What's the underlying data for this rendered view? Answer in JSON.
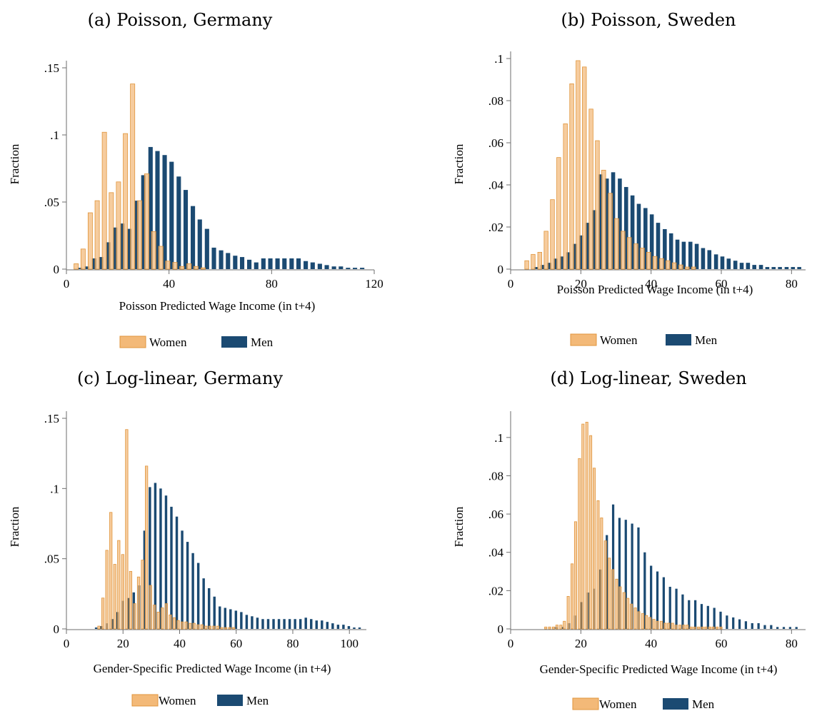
{
  "colors": {
    "women_fill": "#f3b978",
    "women_edge": "#e0953c",
    "men_fill": "#1b4a72",
    "axis": "#6e6e6e"
  },
  "legend": {
    "women": "Women",
    "men": "Men"
  },
  "chart_data": [
    {
      "type": "bar",
      "title": "(a) Poisson, Germany",
      "xlabel": "Poisson Predicted Wage Income (in t+4)",
      "ylabel": "Fraction",
      "xlim": [
        0,
        120
      ],
      "ylim": [
        0,
        0.15
      ],
      "xticks": [
        0,
        40,
        80,
        120
      ],
      "xtick_labels": [
        "0",
        "40",
        "80",
        "120"
      ],
      "yticks": [
        0,
        0.05,
        0.1,
        0.15
      ],
      "ytick_labels": [
        "0",
        ".05",
        ".1",
        ".15"
      ],
      "bin_width": 2.75,
      "series": [
        {
          "name": "Women",
          "x": [
            3.8,
            6.5,
            9.3,
            12.0,
            14.8,
            17.5,
            20.3,
            23.0,
            25.8,
            28.5,
            31.3,
            34.0,
            36.8,
            39.5,
            42.3,
            45.0,
            47.8,
            50.5,
            53.3
          ],
          "values": [
            0.004,
            0.015,
            0.042,
            0.051,
            0.102,
            0.057,
            0.065,
            0.101,
            0.138,
            0.051,
            0.071,
            0.028,
            0.017,
            0.006,
            0.005,
            0.002,
            0.004,
            0.002,
            0.001
          ]
        },
        {
          "name": "Men",
          "x": [
            5.3,
            8.0,
            10.8,
            13.5,
            16.3,
            19.0,
            21.8,
            24.5,
            27.3,
            30.0,
            32.8,
            35.5,
            38.3,
            41.0,
            43.8,
            46.5,
            49.3,
            52.0,
            54.8,
            57.5,
            60.3,
            63.0,
            65.8,
            68.5,
            71.3,
            74.0,
            76.8,
            79.5,
            82.3,
            85.0,
            87.8,
            90.5,
            93.3,
            96.0,
            98.8,
            101.5,
            104.3,
            107.0,
            109.8,
            112.5,
            115.3
          ],
          "values": [
            0.001,
            0.002,
            0.008,
            0.009,
            0.02,
            0.031,
            0.034,
            0.03,
            0.051,
            0.07,
            0.091,
            0.088,
            0.085,
            0.08,
            0.069,
            0.059,
            0.047,
            0.037,
            0.03,
            0.016,
            0.014,
            0.012,
            0.01,
            0.009,
            0.007,
            0.005,
            0.008,
            0.008,
            0.008,
            0.008,
            0.008,
            0.008,
            0.006,
            0.005,
            0.004,
            0.003,
            0.002,
            0.002,
            0.001,
            0.001,
            0.001
          ]
        }
      ]
    },
    {
      "type": "bar",
      "title": "(b) Poisson, Sweden",
      "xlabel": "Poisson Predicted Wage Income (in t+4)",
      "ylabel": "Fraction",
      "xlim": [
        0,
        84
      ],
      "ylim": [
        0,
        0.1
      ],
      "xticks": [
        0,
        20,
        40,
        60,
        80
      ],
      "xtick_labels": [
        "0",
        "20",
        "40",
        "60",
        "80"
      ],
      "yticks": [
        0,
        0.02,
        0.04,
        0.06,
        0.08,
        0.1
      ],
      "ytick_labels": [
        "0",
        ".02",
        ".04",
        ".06",
        ".08",
        ".1"
      ],
      "bin_width": 1.83,
      "series": [
        {
          "name": "Women",
          "x": [
            4.6,
            6.4,
            8.3,
            10.1,
            11.9,
            13.7,
            15.6,
            17.4,
            19.2,
            21.0,
            22.9,
            24.7,
            26.5,
            28.4,
            30.2,
            32.0,
            33.8,
            35.7,
            37.5,
            39.3,
            41.1,
            43.0,
            44.8,
            46.6,
            48.5,
            50.3,
            52.1
          ],
          "values": [
            0.004,
            0.007,
            0.008,
            0.018,
            0.033,
            0.053,
            0.069,
            0.088,
            0.099,
            0.096,
            0.076,
            0.061,
            0.047,
            0.036,
            0.024,
            0.018,
            0.015,
            0.012,
            0.01,
            0.008,
            0.006,
            0.005,
            0.004,
            0.003,
            0.002,
            0.001,
            0.001
          ]
        },
        {
          "name": "Men",
          "x": [
            7.3,
            9.1,
            11.0,
            12.8,
            14.6,
            16.4,
            18.3,
            20.1,
            21.9,
            23.8,
            25.6,
            27.4,
            29.2,
            31.1,
            32.9,
            34.7,
            36.5,
            38.4,
            40.2,
            42.0,
            43.9,
            45.7,
            47.5,
            49.3,
            51.2,
            53.0,
            54.8,
            56.6,
            58.5,
            60.3,
            62.1,
            64.0,
            65.8,
            67.6,
            69.4,
            71.3,
            73.1,
            74.9,
            76.7,
            78.6,
            80.4,
            82.2
          ],
          "values": [
            0.001,
            0.002,
            0.003,
            0.005,
            0.006,
            0.008,
            0.012,
            0.016,
            0.022,
            0.028,
            0.045,
            0.043,
            0.046,
            0.043,
            0.039,
            0.035,
            0.031,
            0.029,
            0.026,
            0.022,
            0.019,
            0.017,
            0.014,
            0.013,
            0.013,
            0.012,
            0.01,
            0.009,
            0.007,
            0.006,
            0.005,
            0.004,
            0.003,
            0.003,
            0.002,
            0.002,
            0.001,
            0.001,
            0.001,
            0.001,
            0.001,
            0.001
          ]
        }
      ]
    },
    {
      "type": "bar",
      "title": "(c) Log-linear, Germany",
      "xlabel": "Gender-Specific Predicted Wage Income (in t+4)",
      "ylabel": "Fraction",
      "xlim": [
        0,
        106
      ],
      "ylim": [
        0,
        0.15
      ],
      "xticks": [
        0,
        20,
        40,
        60,
        80,
        100
      ],
      "xtick_labels": [
        "0",
        "20",
        "40",
        "60",
        "80",
        "100"
      ],
      "yticks": [
        0,
        0.05,
        0.1,
        0.15
      ],
      "ytick_labels": [
        "0",
        ".05",
        ".1",
        ".15"
      ],
      "bin_width": 1.4,
      "series": [
        {
          "name": "Women",
          "x": [
            11.5,
            12.9,
            14.3,
            15.7,
            17.1,
            18.5,
            19.9,
            21.3,
            22.7,
            24.1,
            25.5,
            26.9,
            28.3,
            29.7,
            31.1,
            32.5,
            33.9,
            35.3,
            36.7,
            38.1,
            39.5,
            40.9,
            42.3,
            43.7,
            45.1,
            46.5,
            47.9,
            49.3,
            50.7,
            52.1,
            53.5,
            54.9,
            56.3,
            57.7,
            59.1
          ],
          "values": [
            0.002,
            0.022,
            0.056,
            0.083,
            0.046,
            0.063,
            0.053,
            0.142,
            0.041,
            0.018,
            0.037,
            0.049,
            0.116,
            0.031,
            0.017,
            0.012,
            0.015,
            0.018,
            0.01,
            0.008,
            0.006,
            0.005,
            0.005,
            0.004,
            0.004,
            0.003,
            0.003,
            0.002,
            0.002,
            0.002,
            0.002,
            0.001,
            0.001,
            0.001,
            0.001
          ]
        },
        {
          "name": "Men",
          "x": [
            10.5,
            12.4,
            14.3,
            16.2,
            18.1,
            20.0,
            21.9,
            23.8,
            25.7,
            27.6,
            29.5,
            31.4,
            33.3,
            35.2,
            37.1,
            39.0,
            40.9,
            42.8,
            44.7,
            46.6,
            48.5,
            50.4,
            52.3,
            54.2,
            56.1,
            58.0,
            59.9,
            61.8,
            63.7,
            65.6,
            67.5,
            69.4,
            71.3,
            73.2,
            75.1,
            77.0,
            78.9,
            80.8,
            82.7,
            84.6,
            86.5,
            88.4,
            90.3,
            92.2,
            94.1,
            96.0,
            97.9,
            99.8,
            101.7,
            103.6
          ],
          "values": [
            0.001,
            0.002,
            0.004,
            0.007,
            0.012,
            0.02,
            0.022,
            0.026,
            0.031,
            0.07,
            0.101,
            0.104,
            0.1,
            0.095,
            0.087,
            0.08,
            0.07,
            0.062,
            0.054,
            0.047,
            0.036,
            0.029,
            0.023,
            0.016,
            0.015,
            0.014,
            0.013,
            0.012,
            0.01,
            0.009,
            0.008,
            0.007,
            0.007,
            0.007,
            0.007,
            0.007,
            0.007,
            0.007,
            0.007,
            0.008,
            0.007,
            0.006,
            0.006,
            0.005,
            0.004,
            0.003,
            0.003,
            0.002,
            0.001,
            0.001
          ]
        }
      ]
    },
    {
      "type": "bar",
      "title": "(d) Log-linear, Sweden",
      "xlabel": "Gender-Specific Predicted Wage Income (in t+4)",
      "ylabel": "Fraction",
      "xlim": [
        0,
        84
      ],
      "ylim": [
        0,
        0.11
      ],
      "xticks": [
        0,
        20,
        40,
        60,
        80
      ],
      "xtick_labels": [
        "0",
        "20",
        "40",
        "60",
        "80"
      ],
      "yticks": [
        0,
        0.02,
        0.04,
        0.06,
        0.08,
        0.1
      ],
      "ytick_labels": [
        "0",
        ".02",
        ".04",
        ".06",
        ".08",
        ".1"
      ],
      "bin_width": 1.06,
      "series": [
        {
          "name": "Women",
          "x": [
            10.0,
            11.1,
            12.2,
            13.2,
            14.3,
            15.3,
            16.4,
            17.5,
            18.5,
            19.6,
            20.6,
            21.7,
            22.8,
            23.8,
            24.9,
            25.9,
            27.0,
            28.1,
            29.1,
            30.2,
            31.2,
            32.3,
            33.4,
            34.4,
            35.5,
            36.5,
            37.6,
            38.7,
            39.7,
            40.8,
            41.8,
            42.9,
            44.0,
            45.0,
            46.1,
            47.1,
            48.2,
            49.3,
            50.3,
            51.4,
            52.4,
            53.5,
            54.6,
            55.6,
            56.7,
            57.7,
            58.8,
            59.9
          ],
          "values": [
            0.001,
            0.001,
            0.001,
            0.002,
            0.002,
            0.004,
            0.017,
            0.034,
            0.056,
            0.089,
            0.107,
            0.108,
            0.101,
            0.084,
            0.067,
            0.058,
            0.046,
            0.037,
            0.031,
            0.026,
            0.022,
            0.019,
            0.016,
            0.013,
            0.011,
            0.009,
            0.008,
            0.007,
            0.006,
            0.005,
            0.004,
            0.004,
            0.003,
            0.003,
            0.003,
            0.002,
            0.002,
            0.002,
            0.002,
            0.001,
            0.001,
            0.001,
            0.001,
            0.001,
            0.001,
            0.001,
            0.001,
            0.001
          ]
        },
        {
          "name": "Men",
          "x": [
            13.0,
            14.8,
            16.6,
            18.4,
            20.2,
            22.0,
            23.8,
            25.6,
            27.4,
            29.2,
            31.0,
            32.8,
            34.6,
            36.4,
            38.2,
            40.0,
            41.8,
            43.6,
            45.4,
            47.2,
            49.0,
            50.8,
            52.6,
            54.4,
            56.2,
            58.0,
            59.8,
            61.6,
            63.4,
            65.2,
            67.0,
            68.8,
            70.6,
            72.4,
            74.2,
            76.0,
            77.8,
            79.6,
            81.4
          ],
          "values": [
            0.001,
            0.001,
            0.003,
            0.007,
            0.014,
            0.019,
            0.021,
            0.031,
            0.049,
            0.065,
            0.058,
            0.057,
            0.055,
            0.053,
            0.04,
            0.033,
            0.03,
            0.027,
            0.022,
            0.021,
            0.018,
            0.015,
            0.015,
            0.013,
            0.012,
            0.011,
            0.009,
            0.007,
            0.006,
            0.005,
            0.004,
            0.003,
            0.003,
            0.002,
            0.002,
            0.001,
            0.001,
            0.001,
            0.001
          ]
        }
      ]
    }
  ]
}
